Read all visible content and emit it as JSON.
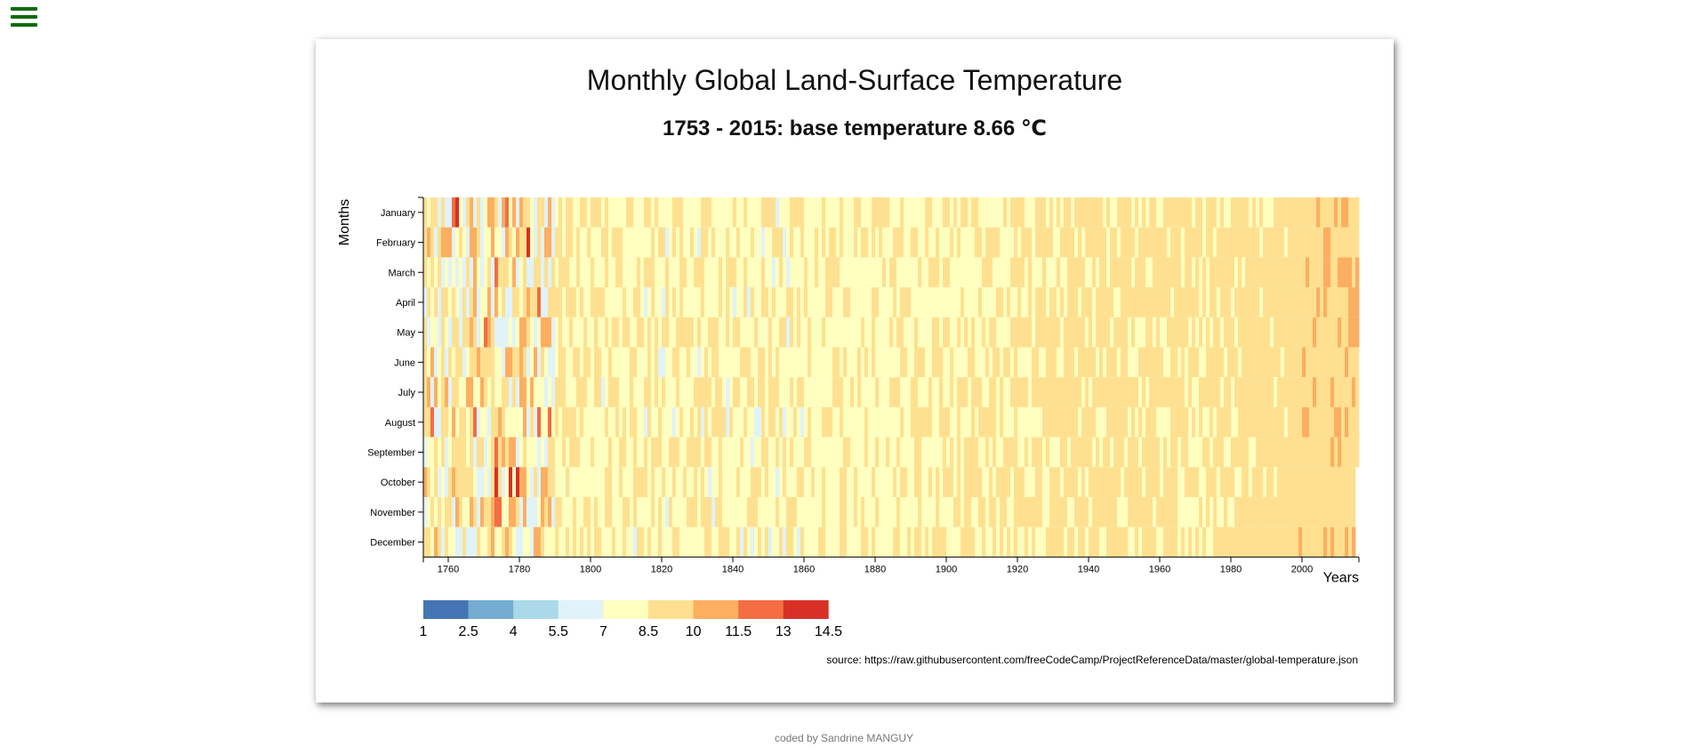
{
  "page": {
    "title": "Monthly Global Land-Surface Temperature",
    "subtitle": "1753 - 2015: base temperature 8.66 ℃",
    "source": "source: https://raw.githubusercontent.com/freeCodeCamp/ProjectReferenceData/master/global-temperature.json",
    "footer": "coded by Sandrine MANGUY",
    "menu_icon": "hamburger-menu-icon"
  },
  "colors": {
    "menu": "#0a6b0a",
    "scale": [
      "#4575b4",
      "#74add1",
      "#abd9e9",
      "#e0f3f8",
      "#ffffbf",
      "#fee090",
      "#fdae61",
      "#f46d43",
      "#d73027"
    ]
  },
  "chart_data": {
    "type": "heatmap",
    "title": "Monthly Global Land-Surface Temperature",
    "subtitle": "1753 - 2015: base temperature 8.66 ℃",
    "base_temperature": 8.66,
    "year_range": [
      1753,
      2015
    ],
    "xlabel": "Years",
    "ylabel": "Months",
    "x_ticks": [
      1760,
      1780,
      1800,
      1820,
      1840,
      1860,
      1880,
      1900,
      1920,
      1940,
      1960,
      1980,
      2000
    ],
    "months": [
      "January",
      "February",
      "March",
      "April",
      "May",
      "June",
      "July",
      "August",
      "September",
      "October",
      "November",
      "December"
    ],
    "legend": {
      "thresholds": [
        1,
        2.5,
        4,
        5.5,
        7,
        8.5,
        10,
        11.5,
        13,
        14.5
      ],
      "labels": [
        "1",
        "2.5",
        "4",
        "5.5",
        "7",
        "8.5",
        "10",
        "11.5",
        "13",
        "14.5"
      ]
    },
    "trend_by_year": [
      {
        "year": 1753,
        "approx_temp": 8.2
      },
      {
        "year": 1800,
        "approx_temp": 8.3
      },
      {
        "year": 1850,
        "approx_temp": 8.1
      },
      {
        "year": 1900,
        "approx_temp": 8.3
      },
      {
        "year": 1920,
        "approx_temp": 8.5
      },
      {
        "year": 1940,
        "approx_temp": 8.9
      },
      {
        "year": 1970,
        "approx_temp": 8.8
      },
      {
        "year": 1990,
        "approx_temp": 9.1
      },
      {
        "year": 2015,
        "approx_temp": 9.6
      }
    ],
    "final_year_months": 9
  }
}
